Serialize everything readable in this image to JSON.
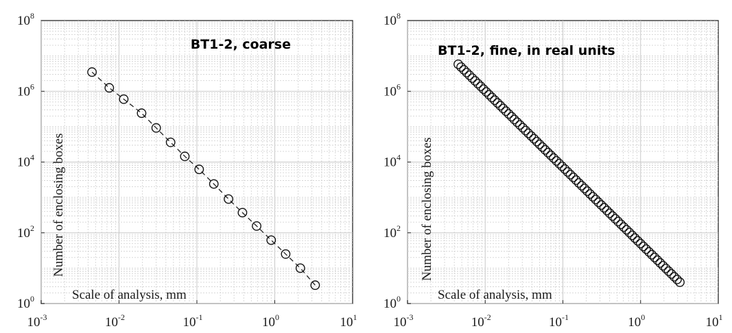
{
  "chart_data": [
    {
      "type": "scatter",
      "title": "BT1-2, coarse",
      "xlabel": "Scale of analysis, mm",
      "ylabel": "Number of enclosing boxes",
      "xscale": "log",
      "yscale": "log",
      "xlim": [
        0.001,
        10
      ],
      "ylim": [
        1,
        100000000
      ],
      "grid": true,
      "x_ticks": [
        "10",
        "10",
        "10",
        "10",
        "10"
      ],
      "x_tick_exponents": [
        "-3",
        "-2",
        "-1",
        "0",
        "1"
      ],
      "y_ticks": [
        "10",
        "10",
        "10",
        "10",
        "10"
      ],
      "y_tick_exponents": [
        "0",
        "2",
        "4",
        "6",
        "8"
      ],
      "series": [
        {
          "marker": "circle",
          "line": "dashed",
          "x": [
            0.0045,
            0.0075,
            0.0115,
            0.0195,
            0.03,
            0.046,
            0.07,
            0.107,
            0.165,
            0.255,
            0.385,
            0.585,
            0.9,
            1.38,
            2.13,
            3.3
          ],
          "y": [
            3500000,
            1250000,
            600000,
            240000,
            92000,
            36000,
            14500,
            6200,
            2400,
            900,
            370,
            155,
            62,
            25,
            10,
            3.3
          ]
        }
      ]
    },
    {
      "type": "scatter",
      "title": "BT1-2, fine, in real units",
      "xlabel": "Scale of analysis, mm",
      "ylabel": "Number of enclosing boxes",
      "xscale": "log",
      "yscale": "log",
      "xlim": [
        0.001,
        10
      ],
      "ylim": [
        1,
        100000000
      ],
      "grid": true,
      "x_ticks": [
        "10",
        "10",
        "10",
        "10",
        "10"
      ],
      "x_tick_exponents": [
        "-3",
        "-2",
        "-1",
        "0",
        "1"
      ],
      "y_ticks": [
        "10",
        "10",
        "10",
        "10",
        "10"
      ],
      "y_tick_exponents": [
        "0",
        "2",
        "4",
        "6",
        "8"
      ],
      "series": [
        {
          "marker": "circle",
          "line": "none",
          "x_range": [
            0.0045,
            3.2
          ],
          "y_range": [
            5800000,
            4
          ],
          "point_count": 80
        }
      ]
    }
  ]
}
